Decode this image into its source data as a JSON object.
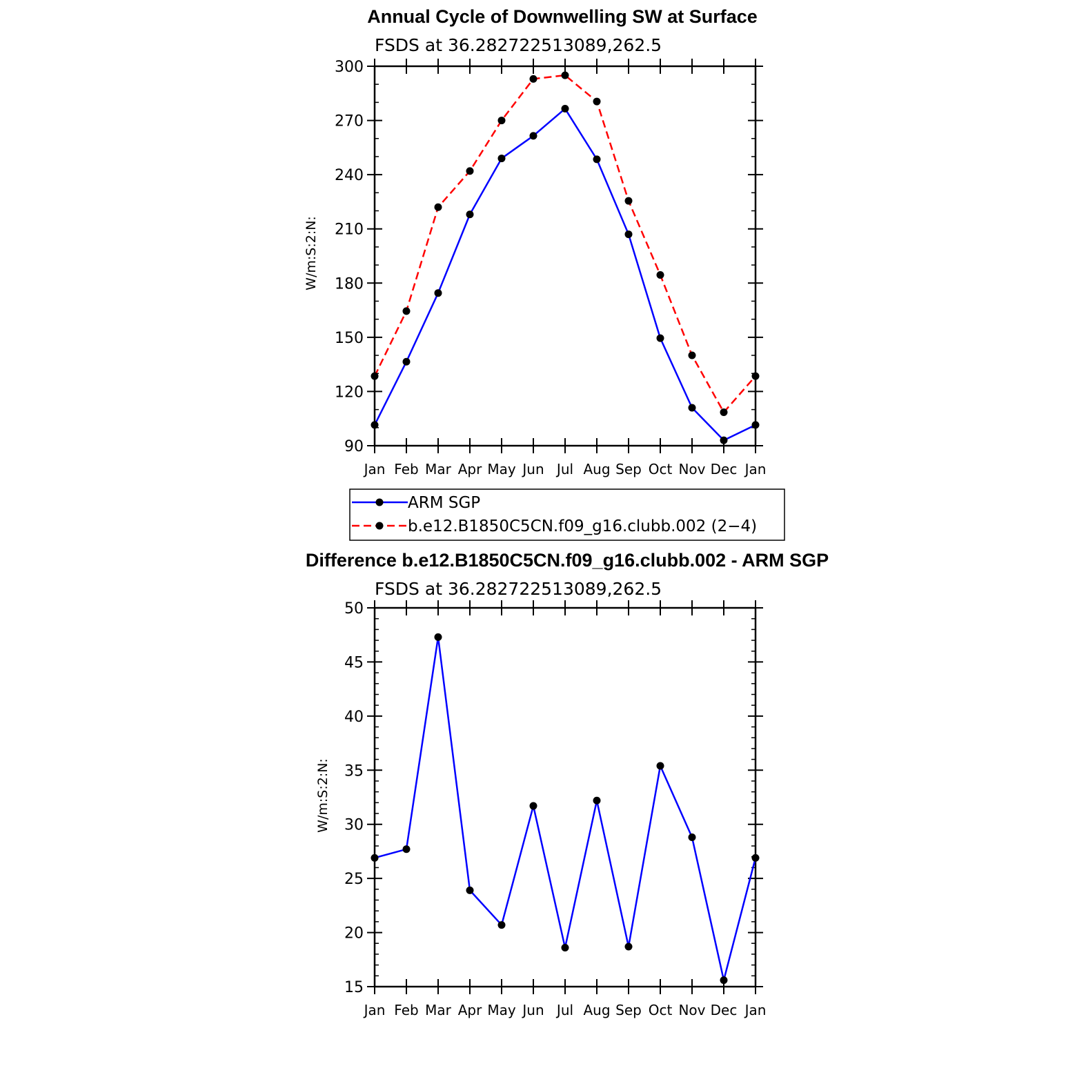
{
  "chart_data": [
    {
      "type": "line",
      "title": "Annual Cycle of Downwelling SW at Surface",
      "subtitle": "FSDS at 36.282722513089,262.5",
      "xlabel": "",
      "ylabel": "W/m:S:2:N:",
      "categories": [
        "Jan",
        "Feb",
        "Mar",
        "Apr",
        "May",
        "Jun",
        "Jul",
        "Aug",
        "Sep",
        "Oct",
        "Nov",
        "Dec",
        "Jan"
      ],
      "ylim": [
        90,
        300
      ],
      "yticks": [
        90,
        120,
        150,
        180,
        210,
        240,
        270,
        300
      ],
      "grid": false,
      "legend_position": "bottom",
      "series": [
        {
          "name": "ARM SGP",
          "color": "#0000ff",
          "line_style": "solid",
          "values": [
            101.5,
            136.5,
            174.5,
            218.0,
            249.0,
            261.5,
            276.5,
            248.5,
            207.0,
            149.5,
            111.0,
            93.0,
            101.5
          ]
        },
        {
          "name": "b.e12.B1850C5CN.f09_g16.clubb.002 (2−4)",
          "color": "#ff0000",
          "line_style": "dashed",
          "values": [
            128.5,
            164.5,
            222.0,
            242.0,
            270.0,
            293.0,
            295.0,
            280.5,
            225.5,
            184.5,
            140.0,
            108.5,
            128.5
          ]
        }
      ]
    },
    {
      "type": "line",
      "title": "Difference b.e12.B1850C5CN.f09_g16.clubb.002 - ARM SGP",
      "subtitle": "FSDS at 36.282722513089,262.5",
      "xlabel": "",
      "ylabel": "W/m:S:2:N:",
      "categories": [
        "Jan",
        "Feb",
        "Mar",
        "Apr",
        "May",
        "Jun",
        "Jul",
        "Aug",
        "Sep",
        "Oct",
        "Nov",
        "Dec",
        "Jan"
      ],
      "ylim": [
        15,
        50
      ],
      "yticks": [
        15,
        20,
        25,
        30,
        35,
        40,
        45,
        50
      ],
      "grid": false,
      "series": [
        {
          "color": "#0000ff",
          "line_style": "solid",
          "values": [
            26.9,
            27.7,
            47.3,
            23.9,
            20.7,
            31.7,
            18.6,
            32.2,
            18.7,
            35.4,
            28.8,
            15.6,
            26.9
          ]
        }
      ]
    }
  ]
}
